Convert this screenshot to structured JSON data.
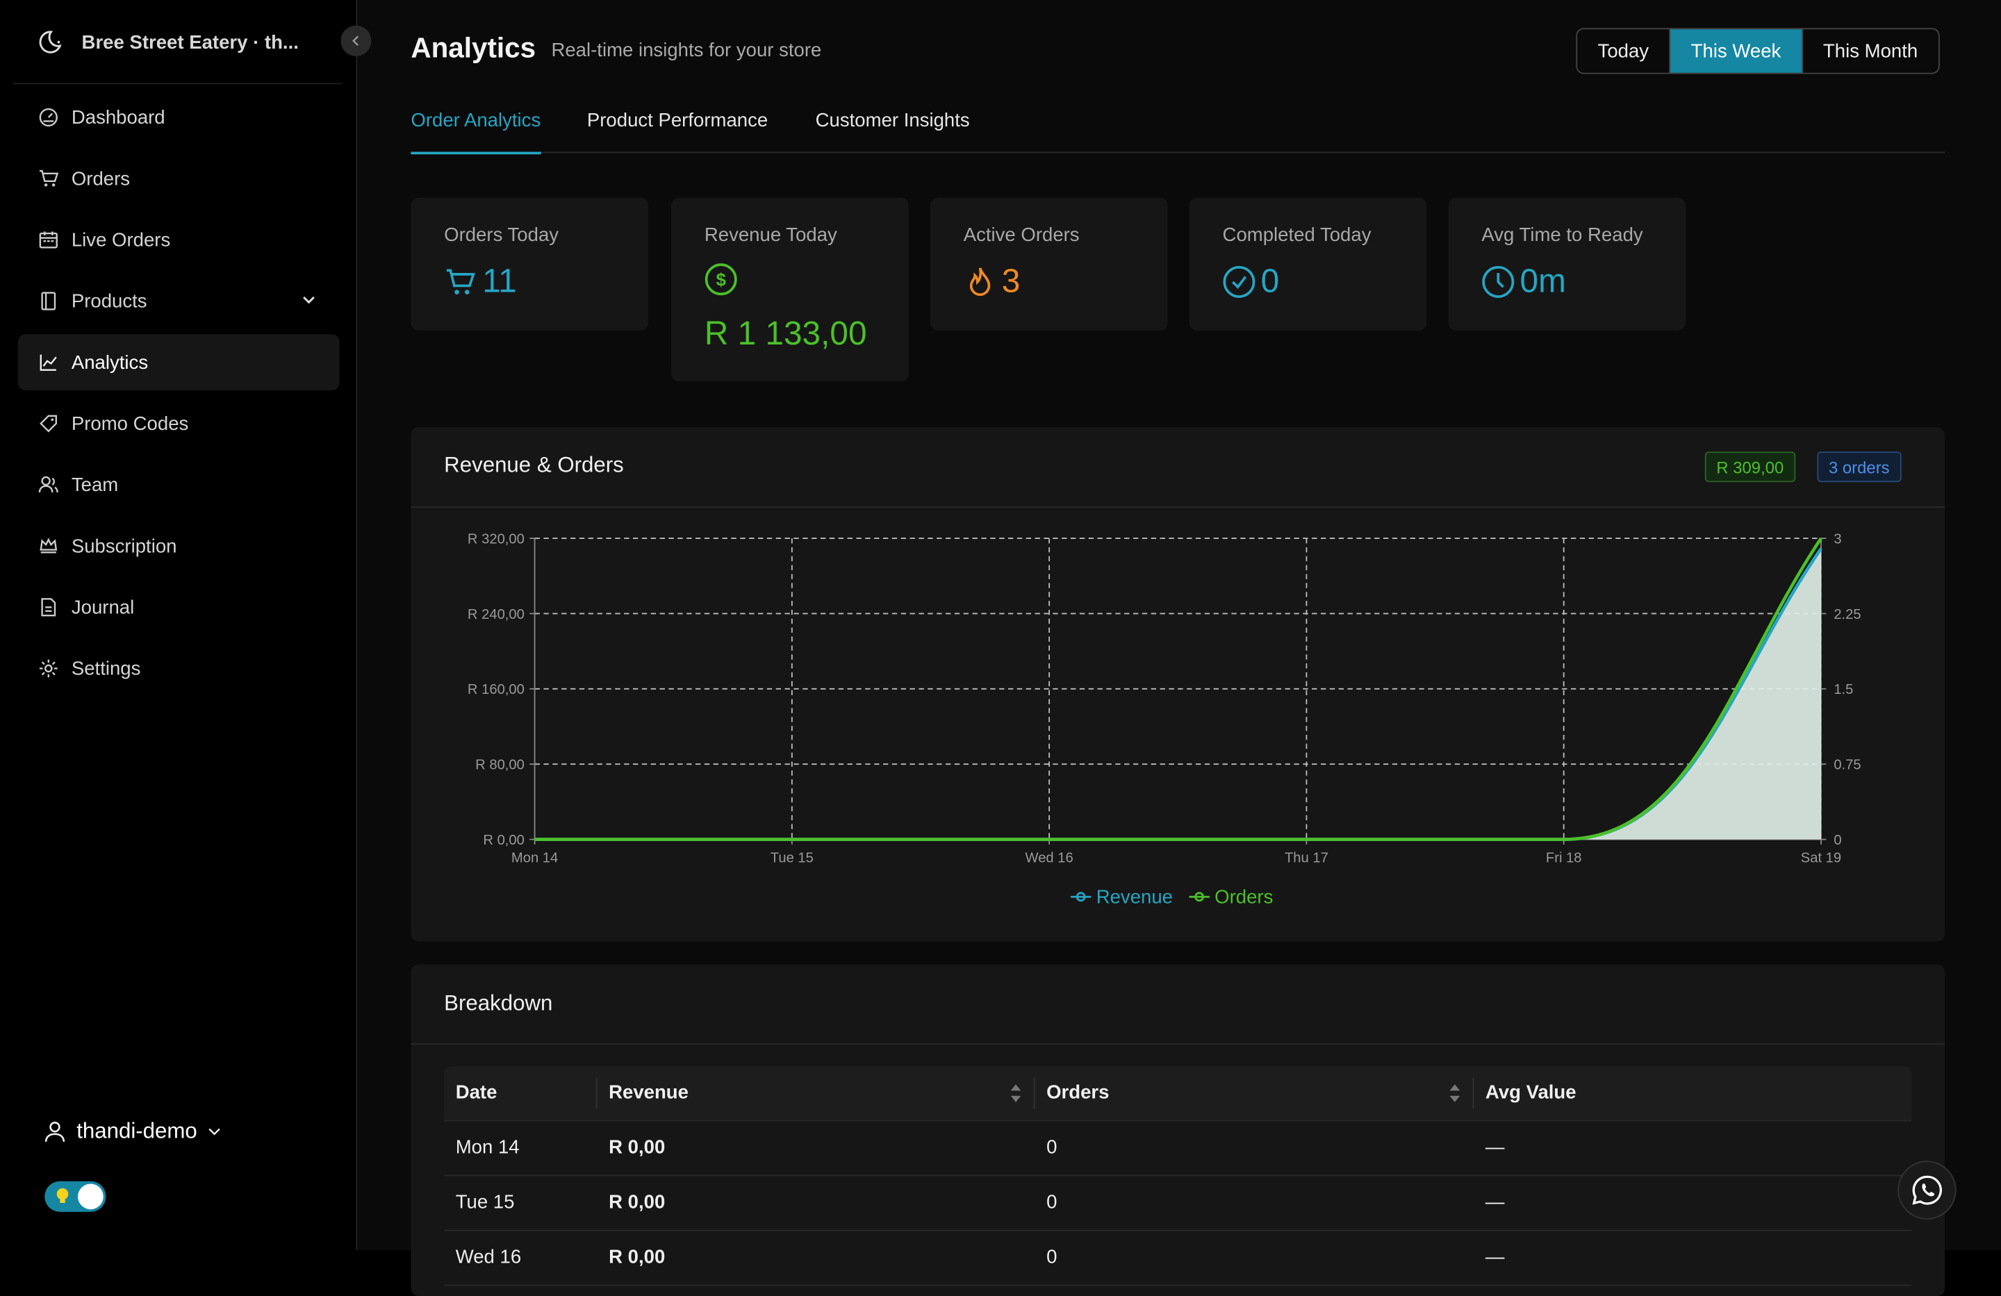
{
  "sidebar": {
    "brand": "Bree Street Eatery · th...",
    "items": [
      {
        "label": "Dashboard",
        "icon": "dashboard-icon"
      },
      {
        "label": "Orders",
        "icon": "cart-icon"
      },
      {
        "label": "Live Orders",
        "icon": "calendar-icon"
      },
      {
        "label": "Products",
        "icon": "book-icon"
      },
      {
        "label": "Analytics",
        "icon": "chart-icon",
        "active": true
      },
      {
        "label": "Promo Codes",
        "icon": "tag-icon"
      },
      {
        "label": "Team",
        "icon": "team-icon"
      },
      {
        "label": "Subscription",
        "icon": "crown-icon"
      },
      {
        "label": "Journal",
        "icon": "document-icon"
      },
      {
        "label": "Settings",
        "icon": "gear-icon"
      }
    ],
    "user": "thandi-demo"
  },
  "header": {
    "title": "Analytics",
    "subtitle": "Real-time insights for your store",
    "range": [
      "Today",
      "This Week",
      "This Month"
    ],
    "range_selected": "This Week"
  },
  "tabs": [
    "Order Analytics",
    "Product Performance",
    "Customer Insights"
  ],
  "stats": [
    {
      "label": "Orders Today",
      "value": "11",
      "color": "#26a6c4"
    },
    {
      "label": "Revenue Today",
      "value": "R 1 133,00",
      "color": "#4cc02a"
    },
    {
      "label": "Active Orders",
      "value": "3",
      "color": "#f08a24"
    },
    {
      "label": "Completed Today",
      "value": "0",
      "color": "#26a6c4"
    },
    {
      "label": "Avg Time to Ready",
      "value": "0m",
      "color": "#26a6c4"
    }
  ],
  "chart_card": {
    "title": "Revenue & Orders",
    "badge_revenue": "R 309,00",
    "badge_orders": "3 orders"
  },
  "chart_data": {
    "type": "area",
    "x": [
      "Mon 14",
      "Tue 15",
      "Wed 16",
      "Thu 17",
      "Fri 18",
      "Sat 19"
    ],
    "series": [
      {
        "name": "Revenue",
        "axis": "left",
        "values": [
          0,
          0,
          0,
          0,
          0,
          309
        ],
        "color": "#26a6c4"
      },
      {
        "name": "Orders",
        "axis": "right",
        "values": [
          0,
          0,
          0,
          0,
          0,
          3
        ],
        "color": "#4cc02a"
      }
    ],
    "y_left_ticks": [
      "R 0,00",
      "R 80,00",
      "R 160,00",
      "R 240,00",
      "R 320,00"
    ],
    "y_right_ticks": [
      "0",
      "0.75",
      "1.5",
      "2.25",
      "3"
    ],
    "y_left_lim": [
      0,
      320
    ],
    "y_right_lim": [
      0,
      3
    ],
    "grid": true,
    "legend": "bottom-center"
  },
  "breakdown": {
    "title": "Breakdown",
    "columns": [
      "Date",
      "Revenue",
      "Orders",
      "Avg Value"
    ],
    "rows": [
      {
        "date": "Mon 14",
        "revenue": "R 0,00",
        "orders": "0",
        "avg": "—"
      },
      {
        "date": "Tue 15",
        "revenue": "R 0,00",
        "orders": "0",
        "avg": "—"
      },
      {
        "date": "Wed 16",
        "revenue": "R 0,00",
        "orders": "0",
        "avg": "—"
      }
    ]
  }
}
